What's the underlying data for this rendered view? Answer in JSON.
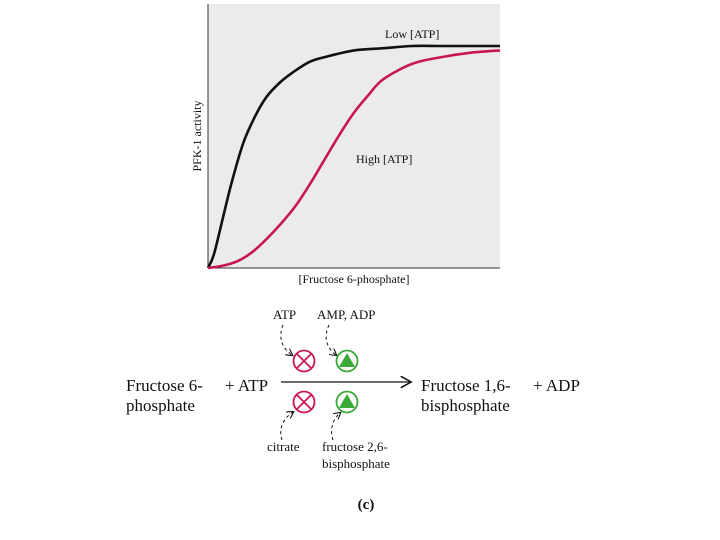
{
  "chart_data": {
    "type": "line",
    "xlabel": "[Fructose 6-phosphate]",
    "ylabel": "PFK-1 activity",
    "xlim": [
      0,
      1
    ],
    "ylim": [
      0,
      1
    ],
    "grid": false,
    "legend": "inline labels",
    "series": [
      {
        "name": "Low [ATP]",
        "color": "#111111",
        "x": [
          0,
          0.02,
          0.05,
          0.08,
          0.12,
          0.16,
          0.2,
          0.25,
          0.3,
          0.35,
          0.4,
          0.5,
          0.6,
          0.7,
          0.8,
          0.9,
          1.0
        ],
        "y": [
          0,
          0.06,
          0.22,
          0.38,
          0.56,
          0.68,
          0.77,
          0.84,
          0.89,
          0.93,
          0.95,
          0.98,
          0.99,
          1.0,
          1.0,
          1.0,
          1.0
        ]
      },
      {
        "name": "High [ATP]",
        "color": "#c8174f",
        "x": [
          0,
          0.05,
          0.1,
          0.15,
          0.2,
          0.25,
          0.3,
          0.35,
          0.4,
          0.45,
          0.5,
          0.55,
          0.6,
          0.7,
          0.8,
          0.9,
          1.0
        ],
        "y": [
          0,
          0.01,
          0.03,
          0.07,
          0.13,
          0.2,
          0.28,
          0.38,
          0.49,
          0.6,
          0.7,
          0.78,
          0.85,
          0.92,
          0.95,
          0.97,
          0.98
        ]
      }
    ]
  },
  "reaction": {
    "substrate_line1": "Fructose 6-",
    "substrate_line2": "phosphate",
    "plus_atp": "+ ATP",
    "product_line1": "Fructose 1,6-",
    "product_line2": "bisphosphate",
    "plus_adp": "+ ADP",
    "inhibitor_top": "ATP",
    "activator_top": "AMP, ADP",
    "inhibitor_bottom": "citrate",
    "activator_bottom_line1": "fructose 2,6-",
    "activator_bottom_line2": "bisphosphate",
    "inhibitor_color": "#c8174f",
    "activator_color": "#3aa935"
  },
  "panel_label": "(c)"
}
